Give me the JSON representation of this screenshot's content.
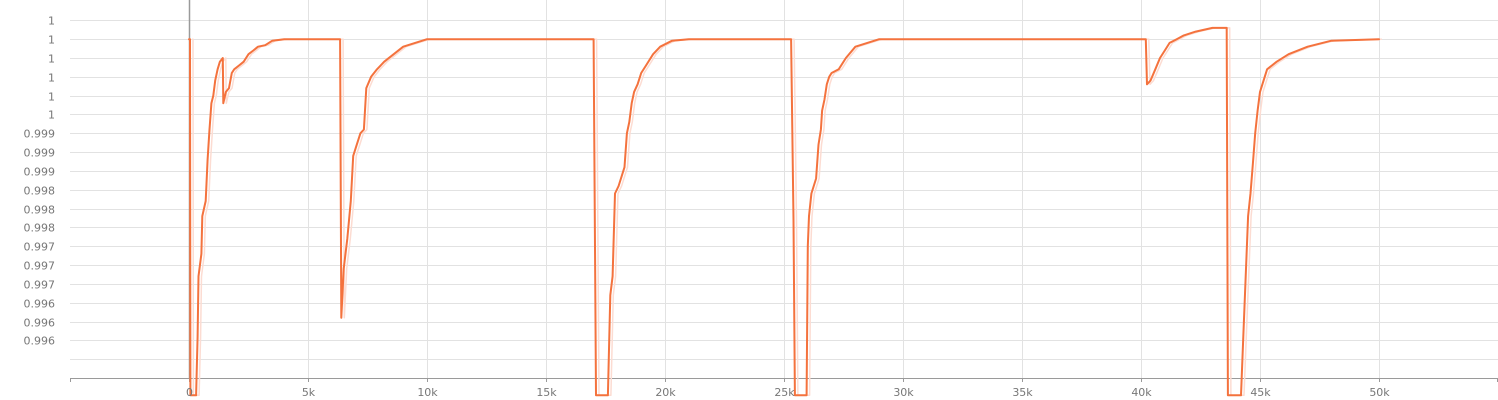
{
  "chart_data": {
    "type": "line",
    "title": "",
    "xlabel": "",
    "ylabel": "",
    "xlim": [
      -5000,
      55000
    ],
    "ylim": [
      0.99553,
      1.00055
    ],
    "grid": true,
    "x_ticks": [
      0,
      5000,
      10000,
      15000,
      20000,
      25000,
      30000,
      35000,
      40000,
      45000,
      50000
    ],
    "x_tick_labels": [
      "0",
      "5k",
      "10k",
      "15k",
      "20k",
      "25k",
      "30k",
      "35k",
      "40k",
      "45k",
      "50k"
    ],
    "y_ticks": [
      0.99578,
      0.99603,
      0.99628,
      0.99653,
      0.99678,
      0.99703,
      0.99728,
      0.99753,
      0.99778,
      0.99803,
      0.99828,
      0.99853,
      0.99878,
      0.99903,
      0.99928,
      0.99953,
      0.99978,
      1.00003,
      1.00028
    ],
    "y_tick_labels": [
      "",
      "0.996",
      "0.996",
      "0.996",
      "0.997",
      "0.997",
      "0.997",
      "0.998",
      "0.998",
      "0.998",
      "0.999",
      "0.999",
      "0.999",
      "1",
      "1",
      "1",
      "1",
      "1",
      "1"
    ],
    "series": [
      {
        "color": "#f4723d",
        "ghost_color": "#fcdcd2",
        "values": [
          [
            0,
            1.00003
          ],
          [
            40,
            1.00003
          ],
          [
            60,
            0.9953
          ],
          [
            300,
            0.9953
          ],
          [
            360,
            0.99608
          ],
          [
            400,
            0.99688
          ],
          [
            520,
            0.99718
          ],
          [
            560,
            0.99768
          ],
          [
            700,
            0.99788
          ],
          [
            780,
            0.99843
          ],
          [
            860,
            0.99883
          ],
          [
            940,
            0.99918
          ],
          [
            1020,
            0.99928
          ],
          [
            1100,
            0.99948
          ],
          [
            1200,
            0.99963
          ],
          [
            1300,
            0.99973
          ],
          [
            1420,
            0.99978
          ],
          [
            1440,
            0.99918
          ],
          [
            1550,
            0.99933
          ],
          [
            1680,
            0.99938
          ],
          [
            1800,
            0.99958
          ],
          [
            1900,
            0.99963
          ],
          [
            2100,
            0.99968
          ],
          [
            2300,
            0.99973
          ],
          [
            2500,
            0.99983
          ],
          [
            2700,
            0.99988
          ],
          [
            2900,
            0.99993
          ],
          [
            3200,
            0.99995
          ],
          [
            3500,
            1.00001
          ],
          [
            4000,
            1.00003
          ],
          [
            6350,
            1.00003
          ],
          [
            6400,
            0.99633
          ],
          [
            6500,
            0.99698
          ],
          [
            6650,
            0.99738
          ],
          [
            6800,
            0.99788
          ],
          [
            6900,
            0.99848
          ],
          [
            7050,
            0.99863
          ],
          [
            7200,
            0.99878
          ],
          [
            7350,
            0.99883
          ],
          [
            7450,
            0.99938
          ],
          [
            7650,
            0.99953
          ],
          [
            7900,
            0.99963
          ],
          [
            8200,
            0.99973
          ],
          [
            8600,
            0.99983
          ],
          [
            9000,
            0.99993
          ],
          [
            9500,
            0.99998
          ],
          [
            10000,
            1.00003
          ],
          [
            17000,
            1.00003
          ],
          [
            17100,
            0.9953
          ],
          [
            17600,
            0.9953
          ],
          [
            17700,
            0.99663
          ],
          [
            17800,
            0.99688
          ],
          [
            17900,
            0.99798
          ],
          [
            18050,
            0.99808
          ],
          [
            18300,
            0.99833
          ],
          [
            18400,
            0.99878
          ],
          [
            18500,
            0.99893
          ],
          [
            18600,
            0.99918
          ],
          [
            18700,
            0.99933
          ],
          [
            18850,
            0.99943
          ],
          [
            19000,
            0.99958
          ],
          [
            19200,
            0.99968
          ],
          [
            19500,
            0.99983
          ],
          [
            19800,
            0.99993
          ],
          [
            20300,
            1.00001
          ],
          [
            21000,
            1.00003
          ],
          [
            25300,
            1.00003
          ],
          [
            25400,
            0.99763
          ],
          [
            25460,
            0.9953
          ],
          [
            25950,
            0.9953
          ],
          [
            26000,
            0.99728
          ],
          [
            26050,
            0.99768
          ],
          [
            26150,
            0.99798
          ],
          [
            26350,
            0.99818
          ],
          [
            26450,
            0.99863
          ],
          [
            26550,
            0.99883
          ],
          [
            26600,
            0.99908
          ],
          [
            26700,
            0.99923
          ],
          [
            26800,
            0.99943
          ],
          [
            26900,
            0.99953
          ],
          [
            27000,
            0.99958
          ],
          [
            27300,
            0.99963
          ],
          [
            27600,
            0.99978
          ],
          [
            28000,
            0.99993
          ],
          [
            29000,
            1.00003
          ],
          [
            40200,
            1.00003
          ],
          [
            40250,
            0.99943
          ],
          [
            40400,
            0.99948
          ],
          [
            40600,
            0.99963
          ],
          [
            40800,
            0.99978
          ],
          [
            41000,
            0.99988
          ],
          [
            41200,
            0.99998
          ],
          [
            41500,
            1.00003
          ],
          [
            41800,
            1.00008
          ],
          [
            42300,
            1.00013
          ],
          [
            43000,
            1.00018
          ],
          [
            43600,
            1.00018
          ],
          [
            43650,
            0.9953
          ],
          [
            44200,
            0.9953
          ],
          [
            44300,
            0.99608
          ],
          [
            44400,
            0.99688
          ],
          [
            44500,
            0.99768
          ],
          [
            44600,
            0.99798
          ],
          [
            44700,
            0.99838
          ],
          [
            44800,
            0.99878
          ],
          [
            44900,
            0.99908
          ],
          [
            45000,
            0.99933
          ],
          [
            45300,
            0.99963
          ],
          [
            45700,
            0.99973
          ],
          [
            46200,
            0.99983
          ],
          [
            47000,
            0.99993
          ],
          [
            48000,
            1.00001
          ],
          [
            50000,
            1.00003
          ]
        ]
      }
    ]
  }
}
